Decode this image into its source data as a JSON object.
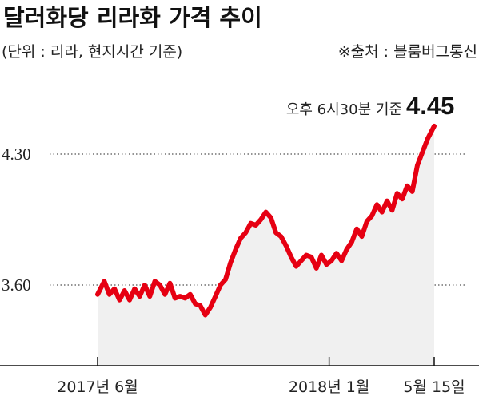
{
  "chart_data": {
    "type": "line",
    "title": "달러화당 리라화 가격 추이",
    "subtitle": "(단위 : 리라, 현지시간 기준)",
    "source": "※출처 : 블룸버그통신",
    "ylim": [
      3.2,
      4.5
    ],
    "yticks": [
      {
        "value": 3.6,
        "label": "3.60"
      },
      {
        "value": 4.3,
        "label": "4.30"
      }
    ],
    "xlim": [
      0,
      100
    ],
    "xticks": [
      {
        "x": 0,
        "label": "2017년 6월"
      },
      {
        "x": 68.8,
        "label": "2018년 1월"
      },
      {
        "x": 100,
        "label": "5월 15일"
      }
    ],
    "series": [
      {
        "color": "#e60012",
        "area_color": "#f0f0f0",
        "x": [
          0,
          2,
          3.5,
          5,
          6.5,
          8,
          9.5,
          11,
          12.5,
          14,
          15.5,
          17,
          18.5,
          20,
          21.5,
          23,
          24.5,
          26,
          27.5,
          29,
          30.5,
          32,
          33.5,
          35,
          36.5,
          38,
          39.5,
          41,
          42.5,
          44,
          45.5,
          47,
          48.5,
          50,
          51.5,
          53,
          54.5,
          56,
          57.5,
          59,
          60.5,
          62,
          63.5,
          65,
          66.5,
          68,
          69.5,
          71,
          72.5,
          74,
          75.5,
          77,
          78.5,
          80,
          81.5,
          83,
          84.5,
          86,
          87.5,
          89,
          90.5,
          92,
          93.5,
          95,
          96.5,
          98,
          100
        ],
        "values": [
          3.55,
          3.62,
          3.55,
          3.58,
          3.52,
          3.57,
          3.52,
          3.58,
          3.54,
          3.6,
          3.54,
          3.62,
          3.6,
          3.55,
          3.61,
          3.53,
          3.54,
          3.53,
          3.55,
          3.5,
          3.49,
          3.44,
          3.48,
          3.54,
          3.6,
          3.63,
          3.72,
          3.79,
          3.85,
          3.88,
          3.93,
          3.92,
          3.95,
          3.99,
          3.96,
          3.88,
          3.86,
          3.81,
          3.75,
          3.7,
          3.73,
          3.76,
          3.75,
          3.69,
          3.76,
          3.71,
          3.73,
          3.77,
          3.73,
          3.79,
          3.83,
          3.9,
          3.86,
          3.94,
          3.97,
          4.03,
          3.99,
          4.05,
          4.0,
          4.09,
          4.06,
          4.13,
          4.1,
          4.24,
          4.31,
          4.38,
          4.45
        ]
      }
    ],
    "annotation": {
      "prefix": "오후 6시30분 기준",
      "value": "4.45"
    }
  }
}
